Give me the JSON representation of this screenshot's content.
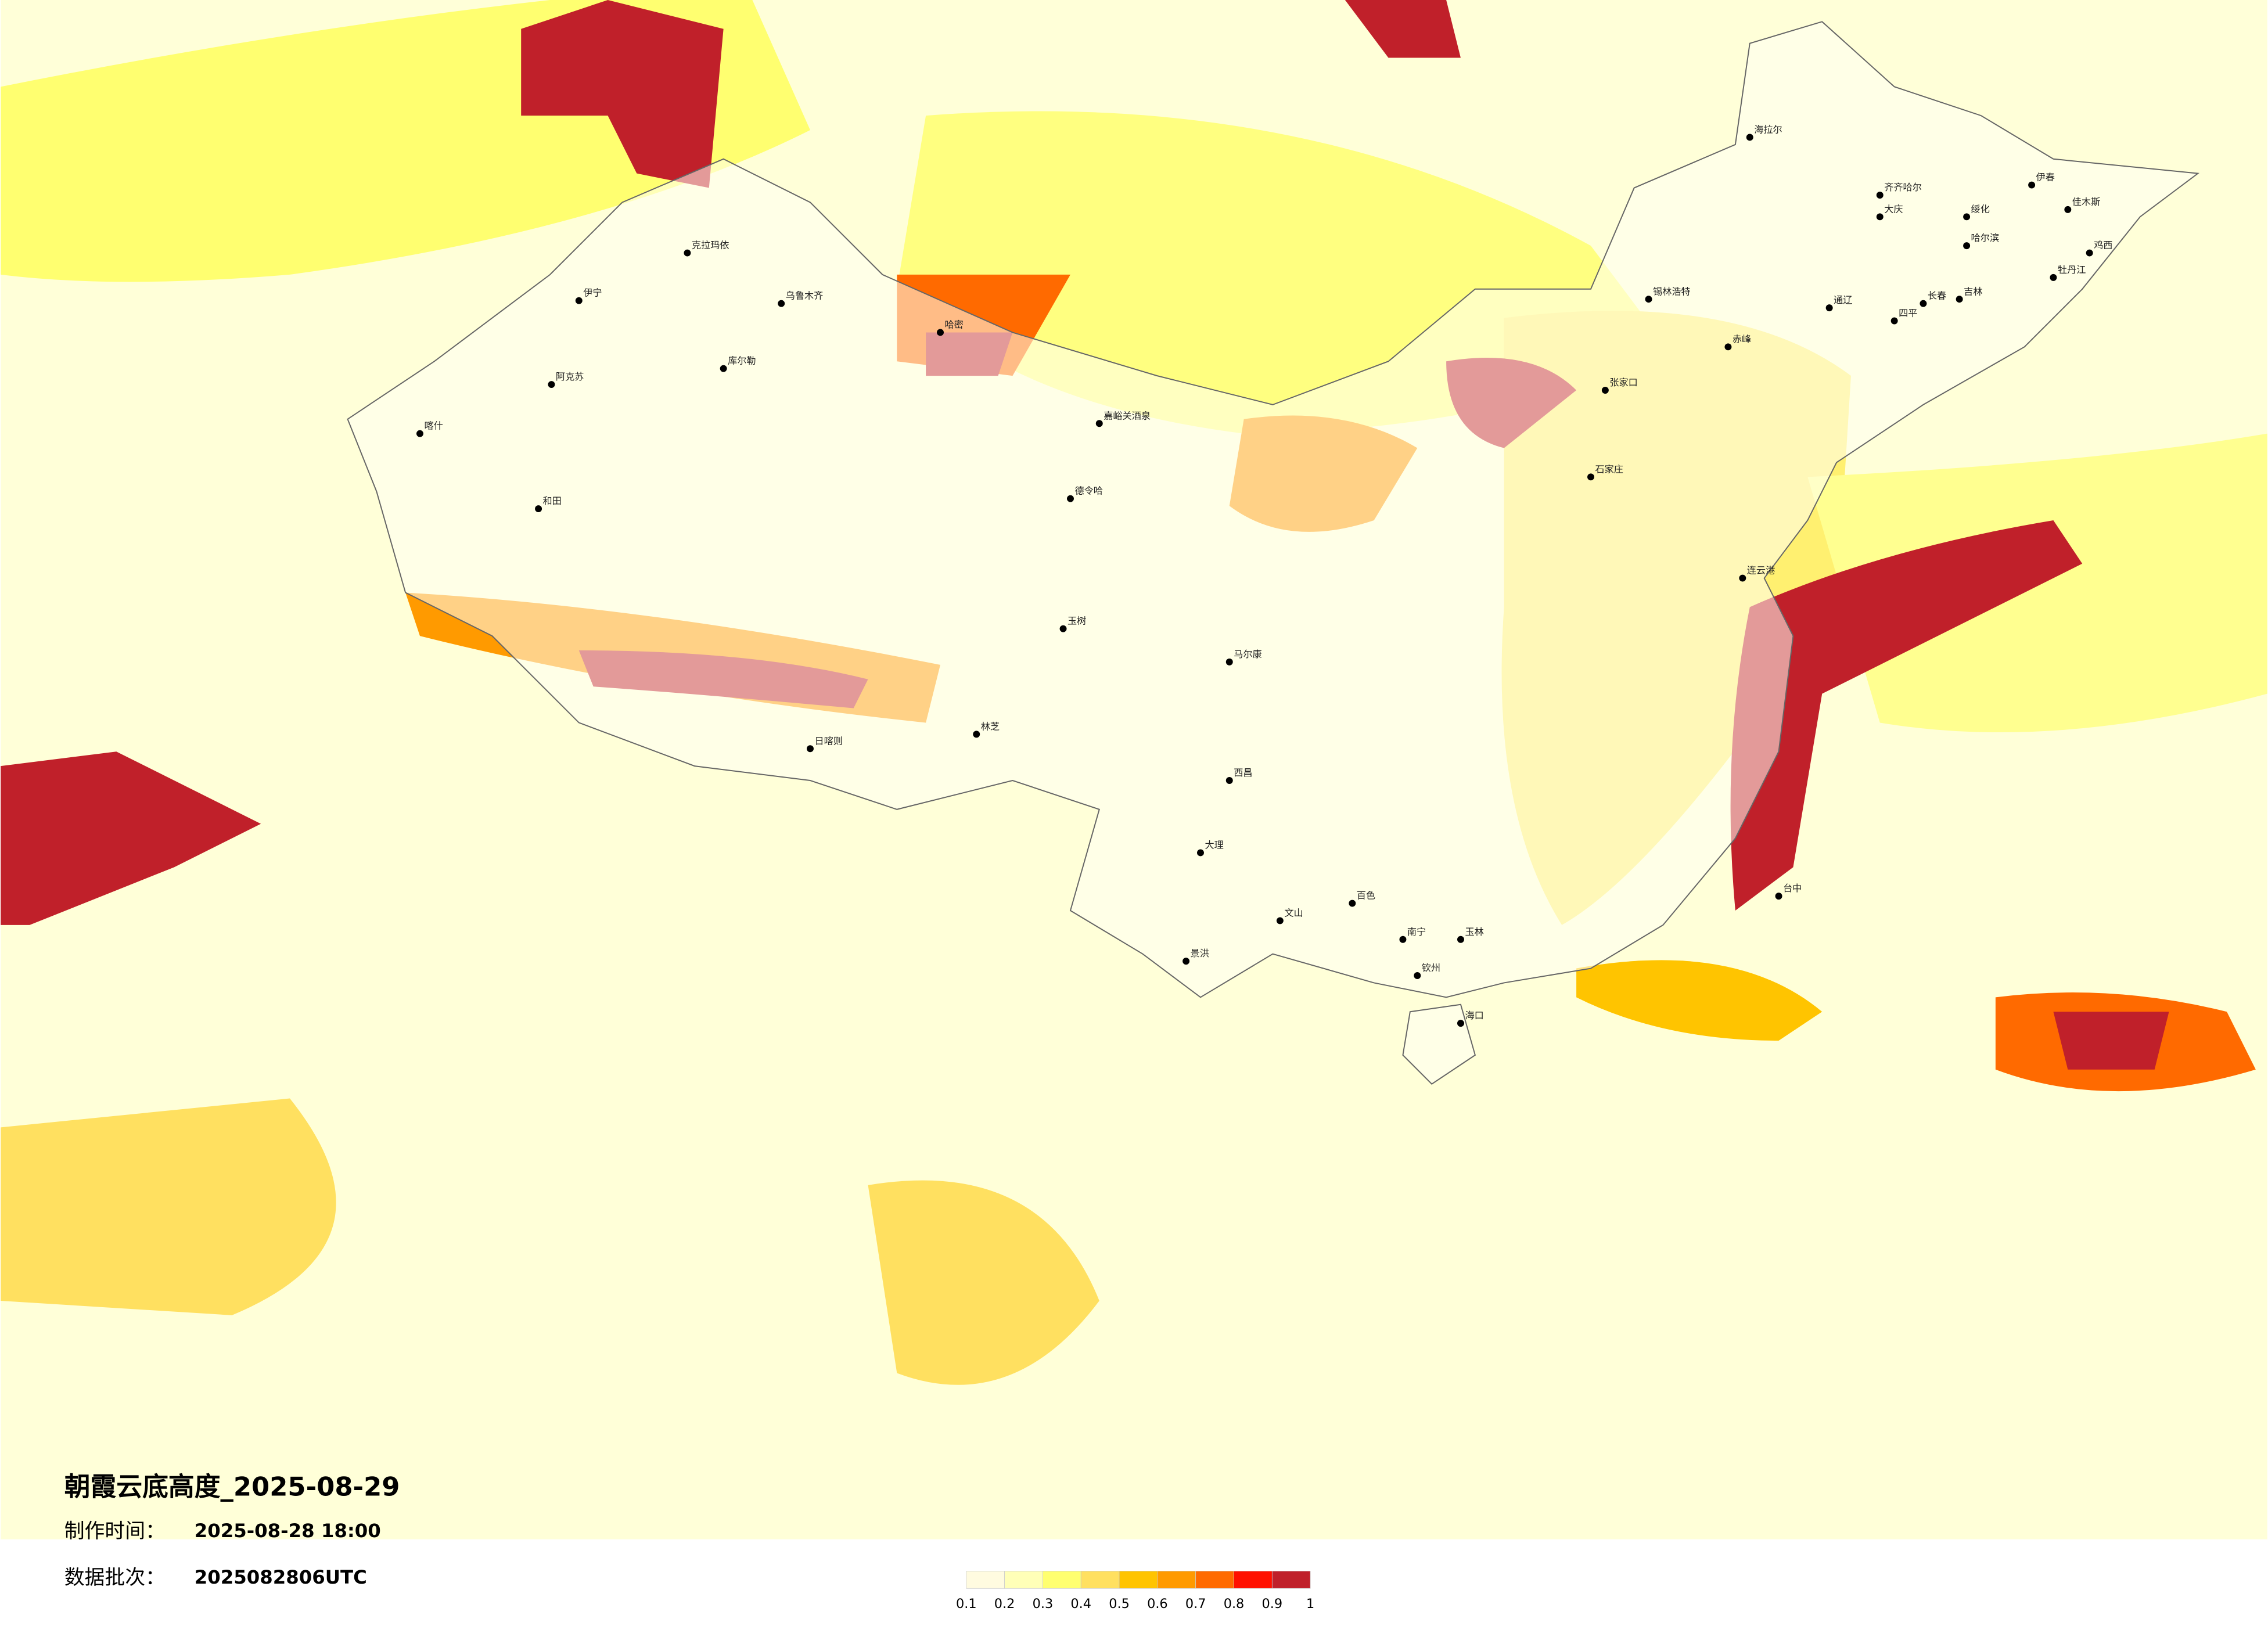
{
  "header": {
    "title": "朝霞云底高度_2025-08-29",
    "made_label": "制作时间：",
    "made_value": "2025-08-28 18:00",
    "batch_label": "数据批次：",
    "batch_value": "2025082806UTC"
  },
  "legend": {
    "colors": [
      "#fffbe0",
      "#ffffb8",
      "#ffff70",
      "#ffe060",
      "#ffc400",
      "#ff9a00",
      "#ff6a00",
      "#ff1000",
      "#c0202a"
    ],
    "ticks": [
      0.1,
      0.2,
      0.3,
      0.4,
      0.5,
      0.6,
      0.7,
      0.8,
      0.9,
      1
    ]
  },
  "cities": [
    "乌鲁木齐",
    "喀什",
    "和田",
    "阿克苏",
    "伊宁",
    "克拉玛依",
    "库尔勒",
    "哈密",
    "日喀则",
    "林芝",
    "海拉尔",
    "齐齐哈尔",
    "哈尔滨",
    "长春",
    "吉林",
    "张家口",
    "石家庄",
    "锡林浩特",
    "嘉峪关酒泉",
    "德令哈",
    "玉树",
    "马尔康",
    "西昌",
    "大理",
    "南宁",
    "海口",
    "钦州",
    "台中",
    "玉林",
    "百色",
    "文山",
    "景洪",
    "连云港",
    "佳木斯",
    "牡丹江",
    "鸡西",
    "绥化",
    "大庆",
    "伊春",
    "四平",
    "通辽",
    "赤峰"
  ]
}
